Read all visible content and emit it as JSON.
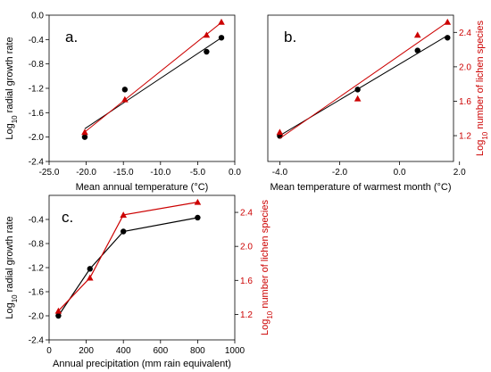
{
  "colors": {
    "black_series": "#000000",
    "red_series": "#cc0000"
  },
  "shared": {
    "ylabel_left_parts": [
      "Log",
      "10",
      " radial growth rate"
    ],
    "ylabel_right_parts": [
      "Log",
      "10",
      " number of lichen species"
    ]
  },
  "chart_data": [
    {
      "panel": "a.",
      "type": "scatter",
      "xlabel": "Mean annual temperature (°C)",
      "xlim": [
        -25,
        0
      ],
      "xticks": [
        "-25.0",
        "-20.0",
        "-15.0",
        "-10.0",
        "-5.0",
        "0.0"
      ],
      "ylim_left": [
        -2.4,
        0
      ],
      "yticks_left": [
        "0.0",
        "-0.4",
        "-0.8",
        "-1.2",
        "-1.6",
        "-2.0",
        "-2.4"
      ],
      "ylim_right": [
        0.9,
        2.6
      ],
      "trendline": true,
      "series": [
        {
          "axis": "left",
          "marker": "circle",
          "color": "#000000",
          "x": [
            -20.2,
            -14.8,
            -3.8,
            -1.8
          ],
          "y": [
            -2.0,
            -1.22,
            -0.6,
            -0.37
          ]
        },
        {
          "axis": "right",
          "marker": "triangle",
          "color": "#cc0000",
          "x": [
            -20.2,
            -14.8,
            -3.8,
            -1.8
          ],
          "y": [
            1.24,
            1.62,
            2.37,
            2.52
          ]
        }
      ]
    },
    {
      "panel": "b.",
      "type": "scatter",
      "xlabel": "Mean temperature of warmest month (°C)",
      "xlim": [
        -4.4,
        1.8
      ],
      "xticks": [
        "-4.0",
        "-2.0",
        "0.0",
        "2.0"
      ],
      "ylim_left": [
        -2.4,
        0
      ],
      "ylim_right": [
        0.9,
        2.6
      ],
      "yticks_right": [
        "2.4",
        "2.0",
        "1.6",
        "1.2"
      ],
      "trendline": true,
      "series": [
        {
          "axis": "left",
          "marker": "circle",
          "color": "#000000",
          "x": [
            -4.0,
            -1.4,
            0.6,
            1.6
          ],
          "y": [
            -1.98,
            -1.22,
            -0.58,
            -0.37
          ]
        },
        {
          "axis": "right",
          "marker": "triangle",
          "color": "#cc0000",
          "x": [
            -4.0,
            -1.4,
            0.6,
            1.6
          ],
          "y": [
            1.24,
            1.63,
            2.37,
            2.52
          ]
        }
      ]
    },
    {
      "panel": "c.",
      "type": "line",
      "xlabel": "Annual precipitation (mm rain equivalent)",
      "xlim": [
        0,
        1000
      ],
      "xticks": [
        "0",
        "200",
        "400",
        "600",
        "800",
        "1000"
      ],
      "ylim_left": [
        -2.4,
        0
      ],
      "yticks_left": [
        "-0.4",
        "-0.8",
        "-1.2",
        "-1.6",
        "-2.0",
        "-2.4"
      ],
      "ylim_right": [
        0.9,
        2.6
      ],
      "yticks_right": [
        "2.4",
        "2.0",
        "1.6",
        "1.2"
      ],
      "trendline": false,
      "series": [
        {
          "axis": "left",
          "marker": "circle",
          "color": "#000000",
          "x": [
            50,
            220,
            400,
            800
          ],
          "y": [
            -2.0,
            -1.22,
            -0.6,
            -0.37
          ]
        },
        {
          "axis": "right",
          "marker": "triangle",
          "color": "#cc0000",
          "x": [
            50,
            220,
            400,
            800
          ],
          "y": [
            1.24,
            1.63,
            2.37,
            2.52
          ]
        }
      ]
    }
  ]
}
